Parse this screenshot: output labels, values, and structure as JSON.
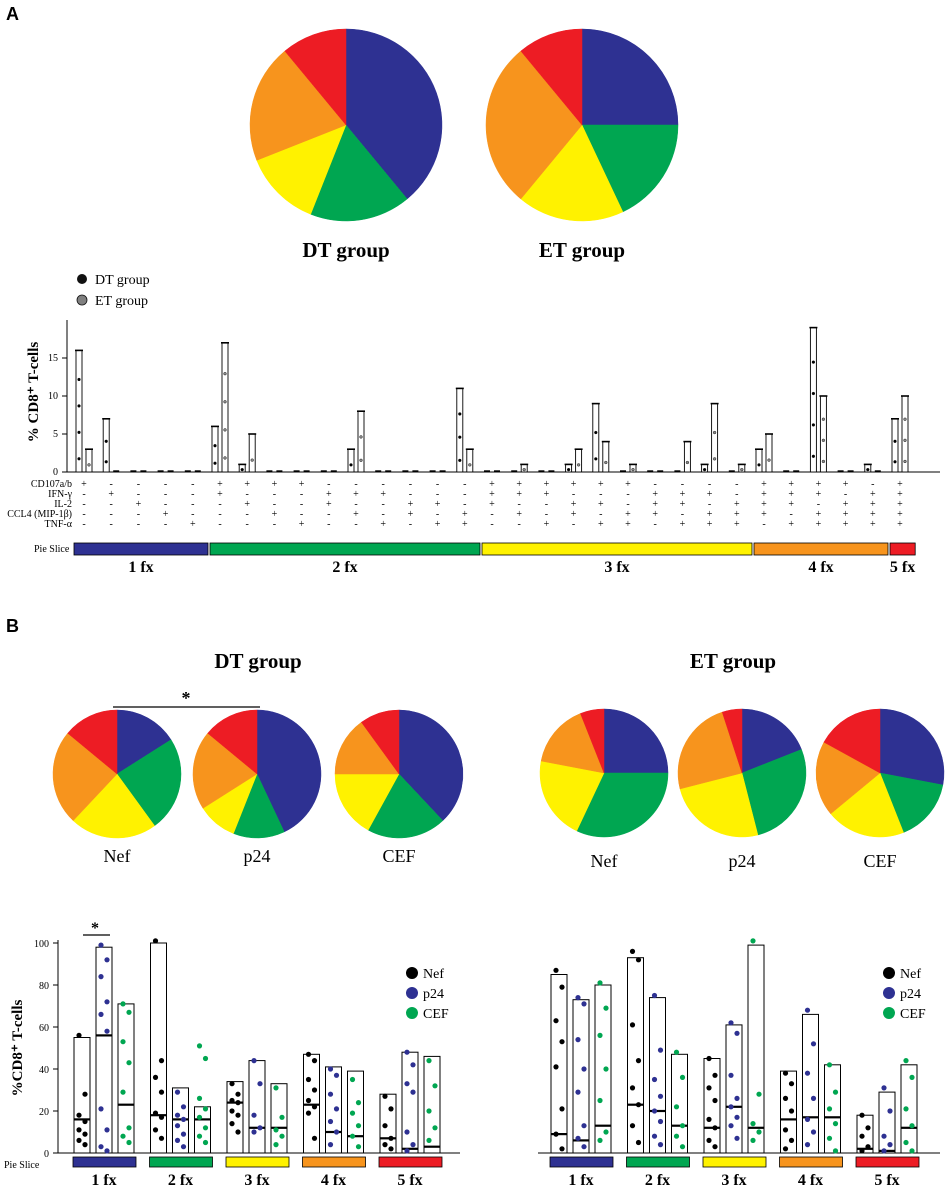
{
  "colors": {
    "1fx": "#2e3192",
    "2fx": "#00a651",
    "3fx": "#fff200",
    "4fx": "#f7941d",
    "5fx": "#ed1c24",
    "nef": "#000000",
    "p24": "#2e3192",
    "cef": "#00a651",
    "et": "#808080"
  },
  "panel_a_label": "A",
  "panel_b_label": "B",
  "chart_data": [
    {
      "type": "pie",
      "id": "A-DT",
      "title": "DT group",
      "categories": [
        "1 fx",
        "2 fx",
        "3 fx",
        "4 fx",
        "5 fx"
      ],
      "values": [
        39,
        17,
        13,
        20,
        11
      ]
    },
    {
      "type": "pie",
      "id": "A-ET",
      "title": "ET group",
      "categories": [
        "1 fx",
        "2 fx",
        "3 fx",
        "4 fx",
        "5 fx"
      ],
      "values": [
        25,
        18,
        18,
        28,
        11
      ]
    },
    {
      "type": "bar",
      "id": "A-bars",
      "ylabel": "% CD8⁺ T-cells",
      "ylim": [
        0,
        20
      ],
      "yticks": [
        0,
        5,
        10,
        15
      ],
      "legend": [
        "DT group",
        "ET group"
      ],
      "marker_rows": [
        "CD107a/b",
        "IFN-γ",
        "IL-2",
        "CCL4 (MIP-1β)",
        "TNF-α"
      ],
      "pie_slice_label": "Pie Slice",
      "groups": [
        {
          "label": "1 fx",
          "start": 0,
          "end": 4
        },
        {
          "label": "2 fx",
          "start": 5,
          "end": 14
        },
        {
          "label": "3 fx",
          "start": 15,
          "end": 24
        },
        {
          "label": "4 fx",
          "start": 25,
          "end": 29
        },
        {
          "label": "5 fx",
          "start": 30,
          "end": 30
        }
      ],
      "combos": [
        "10000",
        "01000",
        "00100",
        "00010",
        "00001",
        "11000",
        "10100",
        "10010",
        "10001",
        "01100",
        "01010",
        "01001",
        "00110",
        "00101",
        "00011",
        "11100",
        "11010",
        "11001",
        "10110",
        "10101",
        "10011",
        "01110",
        "01101",
        "01011",
        "00111",
        "11110",
        "11101",
        "11011",
        "10111",
        "01111",
        "11111"
      ],
      "series": [
        {
          "name": "DT group",
          "values": [
            16,
            7,
            0,
            0,
            0,
            6,
            1,
            0,
            0,
            0,
            3,
            0,
            0,
            0,
            11,
            0,
            0,
            0,
            1,
            9,
            0,
            0,
            0,
            1,
            0,
            3,
            0,
            19,
            0,
            1,
            7
          ]
        },
        {
          "name": "ET group",
          "values": [
            3,
            0,
            0,
            0,
            0,
            17,
            5,
            0,
            0,
            0,
            8,
            0,
            0,
            0,
            3,
            0,
            1,
            0,
            3,
            4,
            1,
            0,
            4,
            9,
            1,
            5,
            0,
            10,
            0,
            0,
            10
          ]
        }
      ]
    },
    {
      "type": "pie",
      "id": "B-DT-Nef",
      "title": "Nef",
      "categories": [
        "1 fx",
        "2 fx",
        "3 fx",
        "4 fx",
        "5 fx"
      ],
      "values": [
        16,
        24,
        22,
        24,
        14
      ]
    },
    {
      "type": "pie",
      "id": "B-DT-p24",
      "title": "p24",
      "categories": [
        "1 fx",
        "2 fx",
        "3 fx",
        "4 fx",
        "5 fx"
      ],
      "values": [
        43,
        13,
        10,
        20,
        14
      ]
    },
    {
      "type": "pie",
      "id": "B-DT-CEF",
      "title": "CEF",
      "categories": [
        "1 fx",
        "2 fx",
        "3 fx",
        "4 fx",
        "5 fx"
      ],
      "values": [
        38,
        20,
        17,
        15,
        10
      ]
    },
    {
      "type": "pie",
      "id": "B-ET-Nef",
      "title": "Nef",
      "categories": [
        "1 fx",
        "2 fx",
        "3 fx",
        "4 fx",
        "5 fx"
      ],
      "values": [
        25,
        32,
        21,
        16,
        6
      ]
    },
    {
      "type": "pie",
      "id": "B-ET-p24",
      "title": "p24",
      "categories": [
        "1 fx",
        "2 fx",
        "3 fx",
        "4 fx",
        "5 fx"
      ],
      "values": [
        19,
        27,
        25,
        24,
        5
      ]
    },
    {
      "type": "pie",
      "id": "B-ET-CEF",
      "title": "CEF",
      "categories": [
        "1 fx",
        "2 fx",
        "3 fx",
        "4 fx",
        "5 fx"
      ],
      "values": [
        28,
        16,
        20,
        19,
        17
      ]
    },
    {
      "type": "bar",
      "id": "B-DT-bars",
      "group_title": "DT group",
      "significance": "*",
      "ylabel": "%CD8⁺ T-cells",
      "ylim": [
        0,
        100
      ],
      "yticks": [
        0,
        20,
        40,
        60,
        80,
        100
      ],
      "pie_slice_label": "Pie Slice",
      "categories": [
        "1 fx",
        "2 fx",
        "3 fx",
        "4 fx",
        "5 fx"
      ],
      "legend": [
        "Nef",
        "p24",
        "CEF"
      ],
      "series": [
        {
          "name": "Nef",
          "values": [
            55,
            100,
            34,
            47,
            28
          ],
          "medians": [
            16,
            18,
            24,
            23,
            7
          ],
          "points": [
            [
              56,
              28,
              18,
              15,
              11,
              9,
              6,
              4
            ],
            [
              101,
              44,
              36,
              29,
              19,
              17,
              11,
              7
            ],
            [
              33,
              28,
              25,
              24,
              20,
              18,
              14,
              10
            ],
            [
              47,
              44,
              35,
              30,
              25,
              22,
              19,
              7
            ],
            [
              27,
              21,
              13,
              7,
              4,
              2
            ]
          ]
        },
        {
          "name": "p24",
          "values": [
            98,
            31,
            44,
            41,
            48
          ],
          "medians": [
            56,
            16,
            12,
            10,
            2
          ],
          "points": [
            [
              99,
              92,
              84,
              72,
              66,
              58,
              21,
              11,
              3,
              1
            ],
            [
              29,
              22,
              18,
              16,
              13,
              9,
              6,
              3
            ],
            [
              44,
              33,
              18,
              12,
              10
            ],
            [
              40,
              37,
              28,
              21,
              15,
              10,
              4
            ],
            [
              48,
              42,
              33,
              29,
              10,
              4,
              1
            ]
          ]
        },
        {
          "name": "CEF",
          "values": [
            71,
            22,
            33,
            39,
            46
          ],
          "medians": [
            23,
            16,
            12,
            8,
            3
          ],
          "points": [
            [
              71,
              67,
              53,
              43,
              29,
              12,
              8,
              5
            ],
            [
              51,
              45,
              26,
              21,
              17,
              12,
              8,
              5
            ],
            [
              31,
              17,
              11,
              8,
              4
            ],
            [
              35,
              24,
              19,
              13,
              8,
              3
            ],
            [
              44,
              32,
              20,
              12,
              6
            ]
          ]
        }
      ]
    },
    {
      "type": "bar",
      "id": "B-ET-bars",
      "group_title": "ET group",
      "ylim": [
        0,
        100
      ],
      "categories": [
        "1 fx",
        "2 fx",
        "3 fx",
        "4 fx",
        "5 fx"
      ],
      "legend": [
        "Nef",
        "p24",
        "CEF"
      ],
      "series": [
        {
          "name": "Nef",
          "values": [
            85,
            93,
            45,
            39,
            18
          ],
          "medians": [
            9,
            23,
            12,
            16,
            2
          ],
          "points": [
            [
              87,
              79,
              63,
              53,
              41,
              21,
              9,
              2
            ],
            [
              96,
              92,
              61,
              44,
              31,
              23,
              13,
              5
            ],
            [
              45,
              37,
              31,
              25,
              16,
              12,
              6,
              3
            ],
            [
              38,
              33,
              26,
              20,
              11,
              6,
              2
            ],
            [
              18,
              12,
              8,
              3,
              1
            ]
          ]
        },
        {
          "name": "p24",
          "values": [
            73,
            74,
            61,
            66,
            29
          ],
          "medians": [
            6,
            20,
            22,
            17,
            1
          ],
          "points": [
            [
              74,
              71,
              54,
              40,
              29,
              13,
              7,
              3
            ],
            [
              75,
              49,
              35,
              27,
              20,
              15,
              8,
              4
            ],
            [
              62,
              57,
              37,
              26,
              22,
              17,
              13,
              7
            ],
            [
              68,
              52,
              38,
              26,
              16,
              10,
              4
            ],
            [
              31,
              20,
              8,
              4,
              1
            ]
          ]
        },
        {
          "name": "CEF",
          "values": [
            80,
            47,
            99,
            42,
            42
          ],
          "medians": [
            13,
            13,
            12,
            17,
            12
          ],
          "points": [
            [
              81,
              69,
              56,
              40,
              25,
              10,
              6
            ],
            [
              48,
              36,
              22,
              13,
              8,
              3
            ],
            [
              101,
              28,
              14,
              10,
              6
            ],
            [
              42,
              29,
              21,
              14,
              7,
              1
            ],
            [
              44,
              36,
              21,
              13,
              5,
              1
            ]
          ]
        }
      ]
    }
  ]
}
